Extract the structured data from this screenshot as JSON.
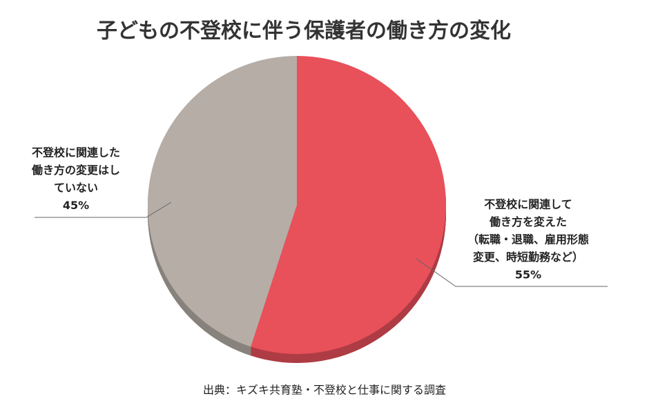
{
  "chart_data": {
    "type": "pie",
    "title": "子どもの不登校に伴う保護者の働き方の変化",
    "categories": [
      [
        "不登校に関連して",
        "働き方を変えた",
        "（転職・退職、雇用形態",
        "変更、時短勤務など）"
      ],
      [
        "不登校に関連した",
        "働き方の変更はし",
        "ていない"
      ]
    ],
    "values": [
      55,
      45
    ],
    "value_labels": [
      "55%",
      "45%"
    ],
    "colors": [
      "#e8505a",
      "#b5ada6"
    ],
    "source": "出典：キズキ共育塾・不登校と仕事に関する調査"
  }
}
